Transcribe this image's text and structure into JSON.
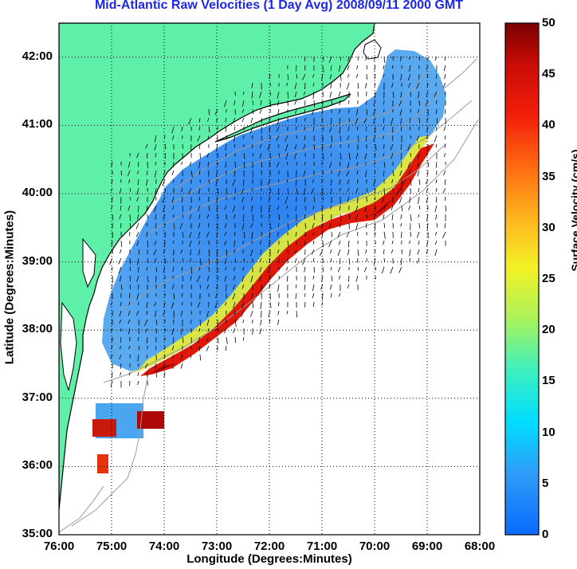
{
  "title": "Mid-Atlantic Raw Velocities (1 Day Avg) 2008/09/11 2000 GMT",
  "xlabel": "Longitude (Degrees:Minutes)",
  "ylabel": "Latitude (Degrees:Minutes)",
  "colorbar": {
    "label": "Surface Velocity (cm/s)",
    "min": 0,
    "max": 50,
    "ticks": [
      "0",
      "5",
      "10",
      "15",
      "20",
      "25",
      "30",
      "35",
      "40",
      "45",
      "50"
    ],
    "colormap": "jet"
  },
  "xticks": [
    "76:00",
    "75:00",
    "74:00",
    "73:00",
    "72:00",
    "71:00",
    "70:00",
    "69:00",
    "68:00"
  ],
  "yticks": [
    "42:00",
    "41:00",
    "40:00",
    "39:00",
    "38:00",
    "37:00",
    "36:00",
    "35:00"
  ],
  "colors": {
    "land": "#5ef0a8",
    "land_outline": "#000000",
    "bathymetry": "#9a9a9a",
    "title": "#1c28e6",
    "grid": "#000000"
  },
  "map": {
    "lon_range": [
      -76.0,
      -68.0
    ],
    "lat_range": [
      35.0,
      42.5
    ],
    "grid": true,
    "grid_style": "dotted"
  }
}
